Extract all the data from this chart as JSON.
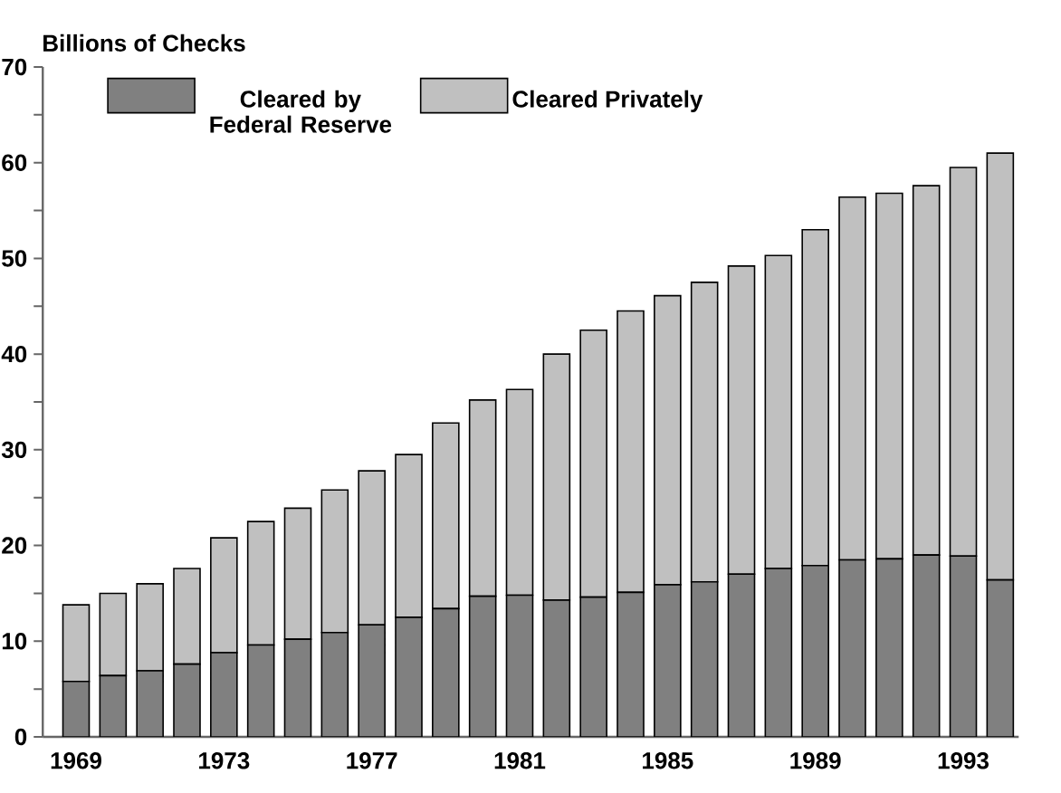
{
  "chart_data": {
    "type": "bar",
    "stacked": true,
    "ylabel": "Billions of Checks",
    "categories": [
      "1969",
      null,
      null,
      null,
      "1973",
      null,
      null,
      null,
      "1977",
      null,
      null,
      null,
      "1981",
      null,
      null,
      null,
      "1985",
      null,
      null,
      null,
      "1989",
      null,
      null,
      null,
      "1993",
      null
    ],
    "series": [
      {
        "name": "Cleared by Federal Reserve",
        "color": "#808080",
        "values": [
          5.8,
          6.4,
          6.9,
          7.6,
          8.8,
          9.6,
          10.2,
          10.9,
          11.7,
          12.5,
          13.4,
          14.7,
          14.8,
          14.3,
          14.6,
          15.1,
          15.9,
          16.2,
          17.0,
          17.6,
          17.9,
          18.5,
          18.6,
          19.0,
          18.9,
          16.4
        ]
      },
      {
        "name": "Cleared Privately",
        "color": "#c0c0c0",
        "values": [
          8.0,
          8.6,
          9.1,
          10.0,
          12.0,
          12.9,
          13.7,
          14.9,
          16.1,
          17.0,
          19.4,
          20.5,
          21.5,
          25.7,
          27.9,
          29.4,
          30.2,
          31.3,
          32.2,
          32.7,
          35.1,
          37.9,
          38.2,
          38.6,
          40.6,
          44.6
        ]
      }
    ],
    "ylim": [
      0,
      70
    ],
    "yticks": [
      0,
      {
        "value": 5,
        "label": null
      },
      10,
      {
        "value": 15,
        "label": null
      },
      20,
      {
        "value": 25,
        "label": null
      },
      30,
      {
        "value": 35,
        "label": null
      },
      40,
      {
        "value": 45,
        "label": null
      },
      50,
      {
        "value": 55,
        "label": null
      },
      60,
      {
        "value": 65,
        "label": null
      },
      70
    ],
    "legend": "top"
  }
}
